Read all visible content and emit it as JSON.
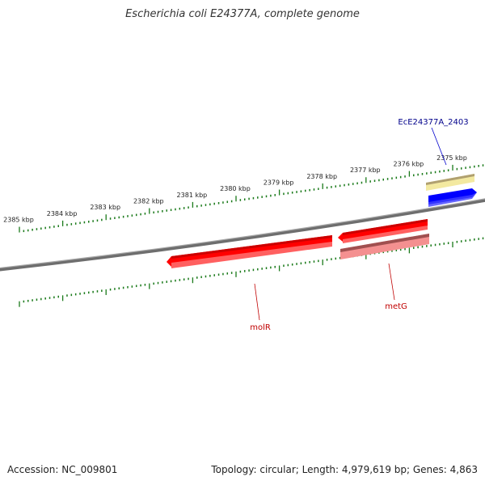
{
  "title": "Escherichia coli E24377A, complete genome",
  "footer": {
    "accession": "Accession: NC_009801",
    "summary": "Topology: circular; Length: 4,979,619 bp; Genes: 4,863"
  },
  "ruler": {
    "labels": [
      "2375 kbp",
      "2376 kbp",
      "2377 kbp",
      "2378 kbp",
      "2379 kbp",
      "2380 kbp",
      "2381 kbp",
      "2382 kbp",
      "2383 kbp",
      "2384 kbp",
      "2385 kbp"
    ],
    "tick_color": "#1a7a1a"
  },
  "features": [
    {
      "label": "EcE24377A_2403",
      "label_color": "#00008b"
    },
    {
      "label": "metG",
      "label_color": "#c00000"
    },
    {
      "label": "molR",
      "label_color": "#c00000"
    }
  ],
  "colors": {
    "backbone": "#808080",
    "cds_strong": "#ff0000",
    "cds_light": "#f08080",
    "blue_feature": "#0000ff",
    "yellow_feature": "#f0e68c"
  }
}
